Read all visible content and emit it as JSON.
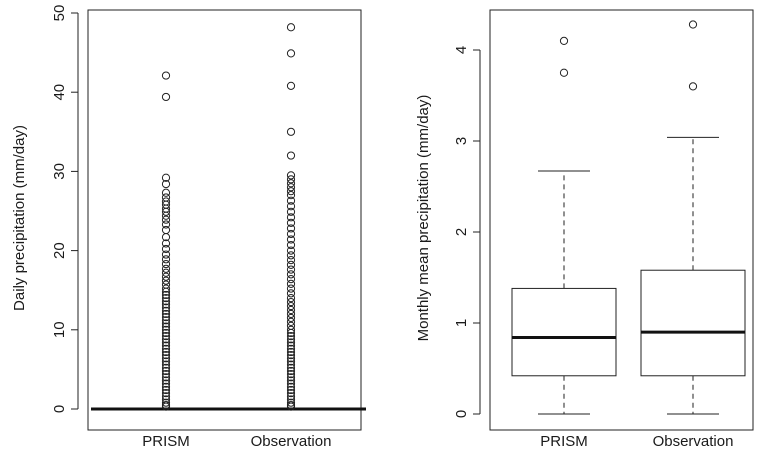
{
  "chart_data": [
    {
      "type": "boxplot",
      "title": "",
      "xlabel": "",
      "ylabel": "Daily precipitation (mm/day)",
      "ylim": [
        0,
        50
      ],
      "yticks": [
        0,
        10,
        20,
        30,
        40,
        50
      ],
      "grid": false,
      "categories": [
        "PRISM",
        "Observation"
      ],
      "boxes": [
        {
          "category": "PRISM",
          "min": 0,
          "q1": 0,
          "median": 0,
          "q3": 0,
          "max": 0,
          "outliers": [
            42.1,
            39.4,
            29.2,
            28.4,
            27.3,
            26.7,
            26.2,
            25.8,
            25.3,
            24.9,
            24.4,
            23.9,
            23.3,
            22.6,
            21.7,
            20.9,
            20.2,
            19.5,
            18.9,
            18.3,
            17.7,
            17.2,
            16.7,
            16.2,
            15.7,
            15.2,
            14.8,
            14.4,
            14.0,
            13.6,
            13.2,
            12.8,
            12.4,
            12.0,
            11.6,
            11.2,
            10.8,
            10.4,
            10.0,
            9.6,
            9.2,
            8.8,
            8.4,
            8.0,
            7.6,
            7.2,
            6.8,
            6.4,
            6.0,
            5.6,
            5.2,
            4.8,
            4.4,
            4.0,
            3.6,
            3.2,
            2.8,
            2.4,
            2.0,
            1.6,
            1.2,
            0.8,
            0.5,
            0.3
          ]
        },
        {
          "category": "Observation",
          "min": 0,
          "q1": 0,
          "median": 0,
          "q3": 0,
          "max": 0,
          "outliers": [
            48.2,
            44.9,
            40.8,
            35.0,
            32.0,
            29.5,
            29.0,
            28.5,
            28.0,
            27.5,
            27.0,
            26.3,
            25.6,
            24.9,
            24.2,
            23.5,
            22.8,
            22.1,
            21.4,
            20.7,
            20.0,
            19.4,
            18.8,
            18.2,
            17.6,
            17.0,
            16.4,
            15.8,
            15.2,
            14.6,
            14.0,
            13.5,
            13.0,
            12.5,
            12.0,
            11.5,
            11.0,
            10.5,
            10.0,
            9.6,
            9.2,
            8.8,
            8.4,
            8.0,
            7.6,
            7.2,
            6.8,
            6.4,
            6.0,
            5.6,
            5.2,
            4.8,
            4.4,
            4.0,
            3.6,
            3.2,
            2.8,
            2.4,
            2.0,
            1.6,
            1.2,
            0.8,
            0.5,
            0.3
          ]
        }
      ]
    },
    {
      "type": "boxplot",
      "title": "",
      "xlabel": "",
      "ylabel": "Monthly mean precipitation (mm/day)",
      "ylim": [
        0,
        4.4
      ],
      "yticks": [
        0,
        1,
        2,
        3,
        4
      ],
      "grid": false,
      "categories": [
        "PRISM",
        "Observation"
      ],
      "boxes": [
        {
          "category": "PRISM",
          "min": 0,
          "q1": 0.42,
          "median": 0.84,
          "q3": 1.38,
          "max": 2.67,
          "outliers": [
            3.75,
            4.1
          ]
        },
        {
          "category": "Observation",
          "min": 0,
          "q1": 0.42,
          "median": 0.9,
          "q3": 1.58,
          "max": 3.04,
          "outliers": [
            3.6,
            4.28
          ]
        }
      ]
    }
  ]
}
